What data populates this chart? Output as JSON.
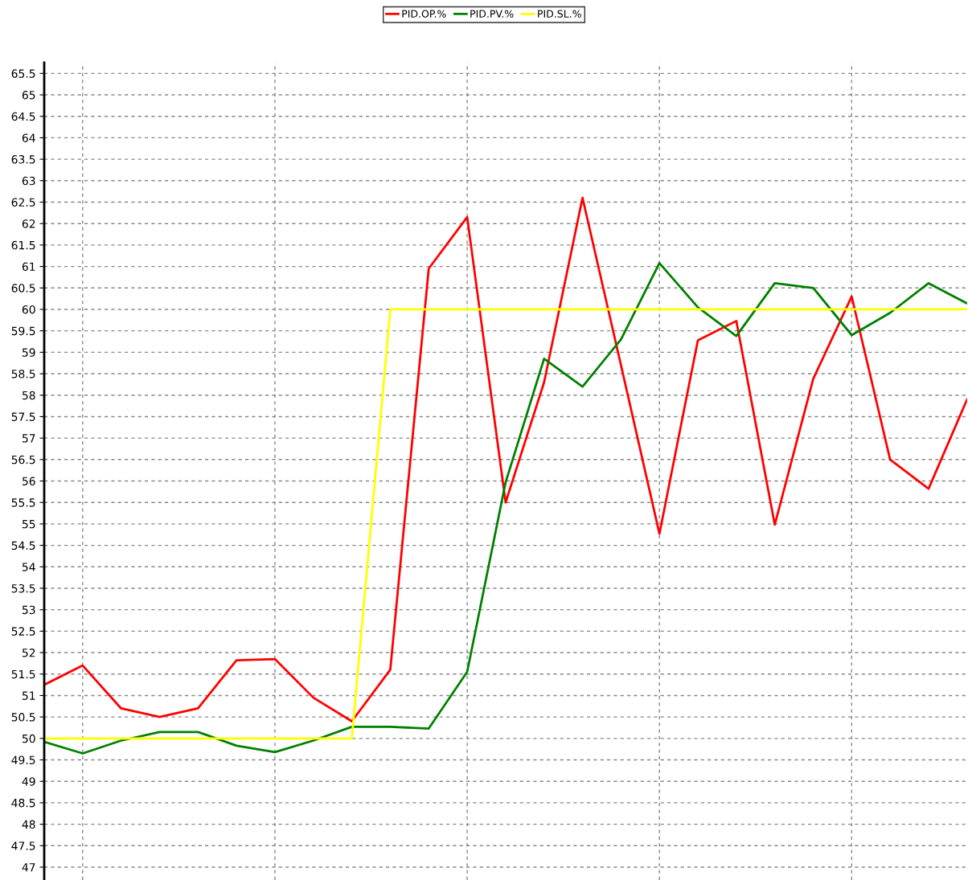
{
  "chart_data": {
    "type": "line",
    "categories": [
      null,
      null,
      null,
      null,
      null,
      null,
      null,
      null,
      null,
      null,
      null,
      null,
      null,
      null,
      null,
      null,
      null,
      null,
      null,
      null,
      null,
      null,
      null,
      null,
      null
    ],
    "series": [
      {
        "name": "PID.OP.%",
        "color": "#ff0000",
        "values": [
          51.25,
          51.7,
          50.7,
          50.5,
          50.7,
          51.82,
          51.85,
          50.95,
          50.4,
          51.6,
          60.95,
          62.15,
          55.5,
          58.3,
          62.6,
          58.7,
          54.77,
          59.28,
          59.73,
          54.98,
          58.38,
          60.3,
          56.5,
          55.82,
          57.9
        ]
      },
      {
        "name": "PID.PV.%",
        "color": "#008000",
        "values": [
          49.92,
          49.65,
          49.95,
          50.15,
          50.15,
          49.83,
          49.68,
          49.95,
          50.27,
          50.27,
          50.23,
          51.55,
          55.97,
          58.85,
          58.2,
          59.3,
          61.08,
          60.05,
          59.38,
          60.61,
          60.5,
          59.4,
          59.92,
          60.61,
          60.14
        ]
      },
      {
        "name": "PID.SL.%",
        "color": "#ffff00",
        "values": [
          50,
          50,
          50,
          50,
          50,
          50,
          50,
          50,
          50,
          60,
          60,
          60,
          60,
          60,
          60,
          60,
          60,
          60,
          60,
          60,
          60,
          60,
          60,
          60,
          60
        ]
      }
    ],
    "ylim": [
      46.7,
      65.75
    ],
    "yticks": [
      47,
      47.5,
      48,
      48.5,
      49,
      49.5,
      50,
      50.5,
      51,
      51.5,
      52,
      52.5,
      53,
      53.5,
      54,
      54.5,
      55,
      55.5,
      56,
      56.5,
      57,
      57.5,
      58,
      58.5,
      59,
      59.5,
      60,
      60.5,
      61,
      61.5,
      62,
      62.5,
      63,
      63.5,
      64,
      64.5,
      65,
      65.5
    ],
    "grid": true,
    "legend": "top",
    "marker": "none",
    "line_style": "solid"
  }
}
